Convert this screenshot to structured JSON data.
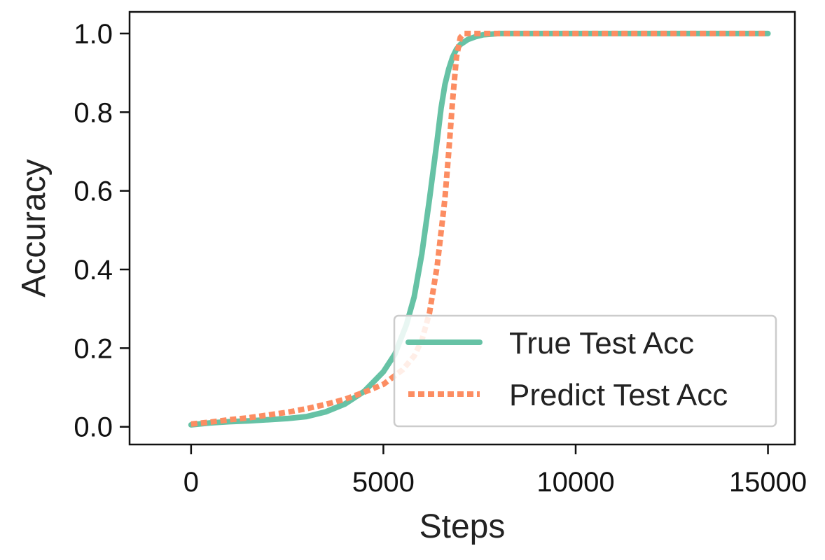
{
  "chart_data": {
    "type": "line",
    "title": "",
    "xlabel": "Steps",
    "ylabel": "Accuracy",
    "xlim": [
      -1600,
      15700
    ],
    "ylim": [
      -0.045,
      1.055
    ],
    "xticks": [
      0,
      5000,
      10000,
      15000
    ],
    "xtick_labels": [
      "0",
      "5000",
      "10000",
      "15000"
    ],
    "yticks": [
      0.0,
      0.2,
      0.4,
      0.6,
      0.8,
      1.0
    ],
    "ytick_labels": [
      "0.0",
      "0.2",
      "0.4",
      "0.6",
      "0.8",
      "1.0"
    ],
    "grid": false,
    "legend_position": "lower-right",
    "series": [
      {
        "name": "True Test Acc",
        "color": "#66c2a5",
        "style": "solid",
        "x": [
          0,
          500,
          1000,
          1500,
          2000,
          2500,
          3000,
          3500,
          4000,
          4500,
          5000,
          5300,
          5600,
          5800,
          6000,
          6200,
          6400,
          6500,
          6600,
          6700,
          6800,
          6900,
          7000,
          7200,
          7400,
          7600,
          8000,
          9000,
          10000,
          12000,
          15000
        ],
        "y": [
          0.005,
          0.01,
          0.013,
          0.015,
          0.018,
          0.021,
          0.026,
          0.038,
          0.058,
          0.09,
          0.14,
          0.185,
          0.26,
          0.33,
          0.44,
          0.58,
          0.73,
          0.81,
          0.87,
          0.91,
          0.94,
          0.96,
          0.972,
          0.985,
          0.992,
          0.997,
          1.0,
          1.0,
          1.0,
          1.0,
          1.0
        ]
      },
      {
        "name": "Predict Test Acc",
        "color": "#fc8d62",
        "style": "dotted",
        "x": [
          0,
          500,
          1000,
          1500,
          2000,
          2500,
          3000,
          3500,
          4000,
          4500,
          5000,
          5500,
          5800,
          6000,
          6200,
          6400,
          6600,
          6700,
          6800,
          6900,
          7000,
          7100,
          7200,
          7500,
          8000,
          10000,
          15000
        ],
        "y": [
          0.007,
          0.012,
          0.018,
          0.023,
          0.03,
          0.037,
          0.046,
          0.057,
          0.07,
          0.088,
          0.108,
          0.145,
          0.18,
          0.22,
          0.29,
          0.41,
          0.58,
          0.7,
          0.83,
          0.94,
          0.99,
          1.0,
          1.0,
          1.0,
          1.0,
          1.0,
          1.0
        ]
      }
    ]
  }
}
